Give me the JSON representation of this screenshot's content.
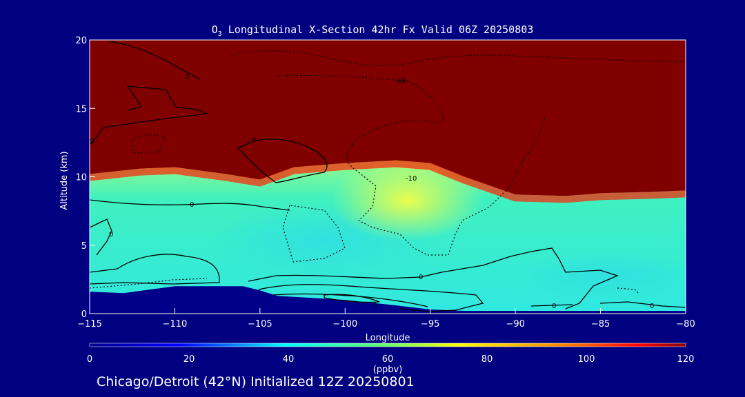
{
  "title": {
    "species": "O",
    "species_sub": "3",
    "text": " Longitudinal X-Section 42hr  Fx Valid 06Z 20250803"
  },
  "footer": "Chicago/Detroit (42°N) Initialized 12Z 20250801",
  "colorbar": {
    "ticks": [
      "0",
      "20",
      "40",
      "60",
      "80",
      "100",
      "120"
    ],
    "unit": "(ppbv)",
    "range": [
      0,
      120
    ]
  },
  "contour_labels": [
    "0",
    "0",
    "0",
    "0",
    "0",
    "0",
    "0",
    "0",
    "0",
    "-10",
    "-10"
  ],
  "chart_data": {
    "type": "heatmap",
    "title": "O3 Longitudinal X-Section 42hr  Fx Valid 06Z 20250803",
    "xlabel": "Longitude",
    "ylabel": "Altitude (km)",
    "xlim": [
      -115,
      -80
    ],
    "ylim": [
      0,
      20
    ],
    "x_ticks": [
      "−115",
      "−110",
      "−105",
      "−100",
      "−95",
      "−90",
      "−85",
      "−80"
    ],
    "y_ticks": [
      "0",
      "5",
      "10",
      "15",
      "20"
    ],
    "colorbar_range_ppbv": [
      0,
      120
    ],
    "colormap": "blue-cyan-green-yellow-orange-red",
    "colors": {
      "background": "#000080",
      "high": "#800000",
      "terrain": "#00008b"
    },
    "tropopause_altitude_km": {
      "longitude": [
        -115,
        -112,
        -110,
        -107,
        -105,
        -103,
        -100,
        -97,
        -95,
        -93,
        -90,
        -87,
        -85,
        -82,
        -80
      ],
      "altitude": [
        10.2,
        10.6,
        10.7,
        10.2,
        9.8,
        10.7,
        11.0,
        11.2,
        11.0,
        10.0,
        8.7,
        8.6,
        8.8,
        8.9,
        9.0
      ]
    },
    "terrain_altitude_km": {
      "longitude": [
        -115,
        -113,
        -110,
        -108,
        -106,
        -105,
        -104,
        -100,
        -97,
        -95,
        -93,
        -90,
        -85,
        -80
      ],
      "altitude": [
        1.6,
        1.5,
        2.0,
        2.0,
        2.0,
        1.7,
        1.3,
        1.0,
        0.6,
        0.3,
        0.2,
        0.2,
        0.2,
        0.2
      ]
    },
    "contour_labels": [
      "0",
      "-10",
      "-10"
    ]
  }
}
